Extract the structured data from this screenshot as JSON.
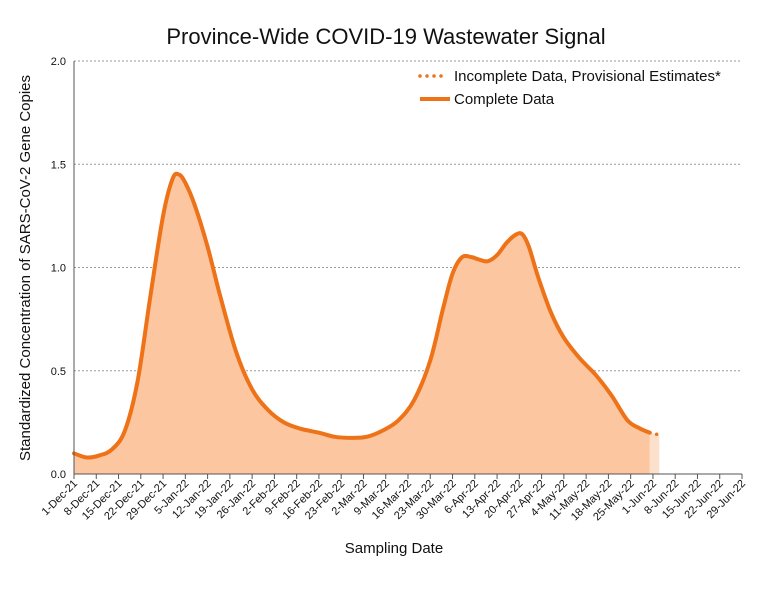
{
  "chart_data": {
    "type": "area",
    "title": "Province-Wide COVID-19 Wastewater Signal",
    "xlabel": "Sampling Date",
    "ylabel": "Standardized Concentration of SARS-CoV-2 Gene Copies",
    "ylim": [
      0,
      2.0
    ],
    "y_ticks": [
      "0.0",
      "0.5",
      "1.0",
      "1.5",
      "2.0"
    ],
    "y_tick_values": [
      0,
      0.5,
      1.0,
      1.5,
      2.0
    ],
    "x_ticks": [
      "1-Dec-21",
      "8-Dec-21",
      "15-Dec-21",
      "22-Dec-21",
      "29-Dec-21",
      "5-Jan-22",
      "12-Jan-22",
      "19-Jan-22",
      "26-Jan-22",
      "2-Feb-22",
      "9-Feb-22",
      "16-Feb-22",
      "23-Feb-22",
      "2-Mar-22",
      "9-Mar-22",
      "16-Mar-22",
      "23-Mar-22",
      "30-Mar-22",
      "6-Apr-22",
      "13-Apr-22",
      "20-Apr-22",
      "27-Apr-22",
      "4-May-22",
      "11-May-22",
      "18-May-22",
      "25-May-22",
      "1-Jun-22",
      "8-Jun-22",
      "15-Jun-22",
      "22-Jun-22",
      "29-Jun-22"
    ],
    "grid": "horizontal dashed",
    "legend_position": "top-right",
    "colors": {
      "line": "#ee7218",
      "fill": "#fcc6a0"
    },
    "series": [
      {
        "name": "Complete Data",
        "style": "solid",
        "x": [
          "1-Dec-21",
          "5-Dec-21",
          "9-Dec-21",
          "13-Dec-21",
          "17-Dec-21",
          "21-Dec-21",
          "25-Dec-21",
          "29-Dec-21",
          "1-Jan-22",
          "3-Jan-22",
          "5-Jan-22",
          "8-Jan-22",
          "12-Jan-22",
          "16-Jan-22",
          "21-Jan-22",
          "26-Jan-22",
          "31-Jan-22",
          "5-Feb-22",
          "10-Feb-22",
          "16-Feb-22",
          "21-Feb-22",
          "26-Feb-22",
          "3-Mar-22",
          "8-Mar-22",
          "13-Mar-22",
          "18-Mar-22",
          "23-Mar-22",
          "27-Mar-22",
          "30-Mar-22",
          "2-Apr-22",
          "5-Apr-22",
          "7-Apr-22",
          "10-Apr-22",
          "13-Apr-22",
          "16-Apr-22",
          "19-Apr-22",
          "21-Apr-22",
          "23-Apr-22",
          "26-Apr-22",
          "30-Apr-22",
          "4-May-22",
          "9-May-22",
          "14-May-22",
          "19-May-22",
          "24-May-22",
          "28-May-22",
          "31-May-22"
        ],
        "values": [
          0.1,
          0.08,
          0.09,
          0.12,
          0.21,
          0.45,
          0.86,
          1.25,
          1.43,
          1.45,
          1.41,
          1.3,
          1.1,
          0.86,
          0.59,
          0.41,
          0.31,
          0.25,
          0.22,
          0.2,
          0.18,
          0.175,
          0.18,
          0.21,
          0.26,
          0.36,
          0.55,
          0.8,
          0.97,
          1.05,
          1.05,
          1.04,
          1.03,
          1.06,
          1.12,
          1.16,
          1.16,
          1.1,
          0.95,
          0.78,
          0.66,
          0.56,
          0.48,
          0.38,
          0.26,
          0.22,
          0.2
        ]
      },
      {
        "name": "Incomplete Data, Provisional Estimates*",
        "style": "dotted",
        "x": [
          "31-May-22",
          "3-Jun-22"
        ],
        "values": [
          0.2,
          0.19
        ]
      }
    ]
  }
}
